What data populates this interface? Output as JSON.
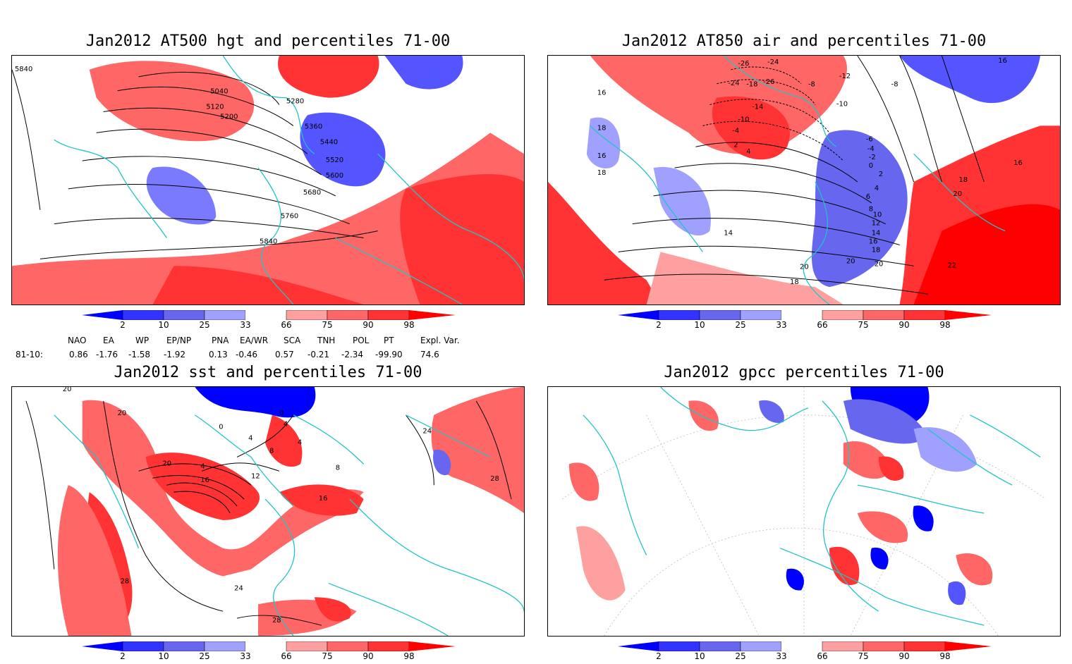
{
  "panels": [
    {
      "id": "hgt",
      "title": "Jan2012 AT500 hgt and percentiles 71-00",
      "contour_labels": [
        "5840",
        "5040",
        "5120",
        "5200",
        "5280",
        "5360",
        "5440",
        "5520",
        "5600",
        "5680",
        "5760",
        "5840"
      ]
    },
    {
      "id": "air",
      "title": "Jan2012 AT850 air and percentiles 71-00",
      "contour_labels": [
        "-26",
        "-24",
        "-24",
        "-18",
        "-26",
        "-12",
        "-8",
        "-8",
        "16",
        "16",
        "18",
        "-14",
        "-10",
        "-10",
        "-4",
        "2",
        "4",
        "-6",
        "-4",
        "-2",
        "0",
        "2",
        "4",
        "6",
        "8",
        "10",
        "12",
        "14",
        "16",
        "18",
        "20",
        "20",
        "22",
        "20",
        "18",
        "18",
        "20",
        "16",
        "14",
        "16",
        "18"
      ]
    },
    {
      "id": "sst",
      "title": "Jan2012 sst and percentiles 71-00",
      "contour_labels": [
        "20",
        "20",
        "0",
        "4",
        "4",
        "0",
        "8",
        "4",
        "20",
        "4",
        "16",
        "12",
        "16",
        "8",
        "24",
        "28",
        "28",
        "24",
        "28"
      ]
    },
    {
      "id": "gpcc",
      "title": "Jan2012 gpcc percentiles 71-00",
      "contour_labels": []
    }
  ],
  "colorbar": {
    "ticks": [
      "2",
      "10",
      "25",
      "33",
      "66",
      "75",
      "90",
      "98"
    ],
    "colors": {
      "below2": "#0000ff",
      "2-10": "#3333ff",
      "10-25": "#6666ee",
      "25-33": "#a0a0ff",
      "33-66": "#ffffff",
      "66-75": "#ffa0a0",
      "75-90": "#ff6666",
      "90-98": "#ff3333",
      "above98": "#ff0000"
    }
  },
  "indices": {
    "headers": [
      "NAO",
      "EA",
      "WP",
      "EP/NP",
      "PNA",
      "EA/WR",
      "SCA",
      "TNH",
      "POL",
      "PT",
      "Expl. Var."
    ],
    "row_label": "81-10:",
    "values": [
      "0.86",
      "-1.76",
      "-1.58",
      "-1.92",
      "0.13",
      "-0.46",
      "0.57",
      "-0.21",
      "-2.34",
      "-99.90",
      "74.6"
    ]
  },
  "colors": {
    "coast": "#22c4c4",
    "warm": "#ff3333",
    "warm_light": "#ffa0a0",
    "cold": "#5555ff",
    "cold_light": "#a0a0ff"
  }
}
